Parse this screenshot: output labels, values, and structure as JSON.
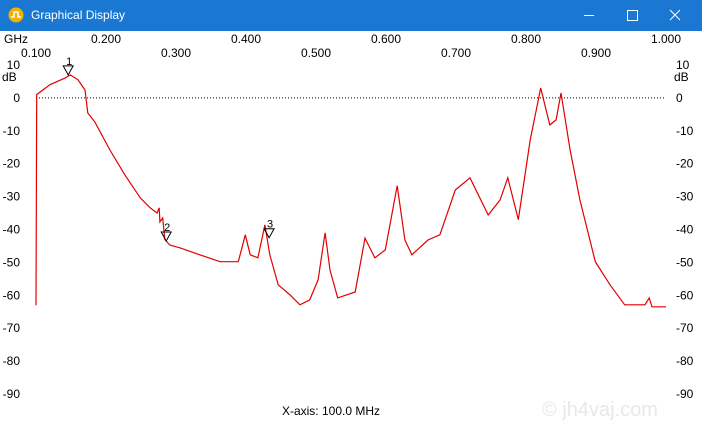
{
  "window": {
    "title": "Graphical Display"
  },
  "chart_data": {
    "type": "line",
    "x_unit": "GHz",
    "y_unit": "dB",
    "x_label": "X-axis: 100.0 MHz",
    "watermark": "© jh4vaj.com",
    "color": "#e00000",
    "reference_line": 0,
    "xlim": [
      0.1,
      1.0
    ],
    "ylim": [
      -90,
      10
    ],
    "xticks": [
      {
        "value": 0.1,
        "label": "0.100"
      },
      {
        "value": 0.2,
        "label": "0.200"
      },
      {
        "value": 0.3,
        "label": "0.300"
      },
      {
        "value": 0.4,
        "label": "0.400"
      },
      {
        "value": 0.5,
        "label": "0.500"
      },
      {
        "value": 0.6,
        "label": "0.600"
      },
      {
        "value": 0.7,
        "label": "0.700"
      },
      {
        "value": 0.8,
        "label": "0.800"
      },
      {
        "value": 0.9,
        "label": "0.900"
      },
      {
        "value": 1.0,
        "label": "1.000"
      }
    ],
    "yticks": [
      10,
      0,
      -10,
      -20,
      -30,
      -40,
      -50,
      -60,
      -70,
      -80,
      -90
    ],
    "x": [
      0.1,
      0.101,
      0.12,
      0.141,
      0.149,
      0.16,
      0.17,
      0.174,
      0.184,
      0.206,
      0.227,
      0.249,
      0.263,
      0.273,
      0.276,
      0.277,
      0.281,
      0.284,
      0.291,
      0.306,
      0.334,
      0.363,
      0.389,
      0.399,
      0.406,
      0.417,
      0.427,
      0.434,
      0.446,
      0.463,
      0.477,
      0.491,
      0.503,
      0.513,
      0.52,
      0.531,
      0.556,
      0.57,
      0.584,
      0.599,
      0.616,
      0.627,
      0.637,
      0.66,
      0.677,
      0.699,
      0.72,
      0.746,
      0.763,
      0.774,
      0.789,
      0.806,
      0.821,
      0.834,
      0.843,
      0.85,
      0.863,
      0.877,
      0.899,
      0.92,
      0.941,
      0.97,
      0.976,
      0.98,
      1.0
    ],
    "values": [
      -63,
      1,
      4,
      6,
      7,
      5.5,
      2.4,
      -4.6,
      -7.3,
      -16,
      -23.4,
      -30.4,
      -33.4,
      -35,
      -33.4,
      -37.7,
      -36.5,
      -43,
      -44.7,
      -45.6,
      -47.7,
      -49.8,
      -49.8,
      -41.6,
      -47.7,
      -48.6,
      -38.6,
      -47.7,
      -56.8,
      -59.9,
      -62.9,
      -61.4,
      -55.3,
      -41,
      -52.3,
      -60.8,
      -59,
      -42.6,
      -48.6,
      -46.2,
      -26.7,
      -43.2,
      -47.7,
      -43.2,
      -41.6,
      -28,
      -24.3,
      -35.6,
      -31,
      -24.3,
      -37,
      -12.8,
      3,
      -8.2,
      -6.7,
      1.5,
      -15.8,
      -31,
      -49.8,
      -56.8,
      -62.9,
      -62.9,
      -60.8,
      -63.5,
      -63.5
    ],
    "markers": [
      {
        "label": "1",
        "x": 0.146,
        "y": 7
      },
      {
        "label": "2",
        "x": 0.286,
        "y": -43.5
      },
      {
        "label": "3",
        "x": 0.433,
        "y": -42.5
      }
    ]
  }
}
